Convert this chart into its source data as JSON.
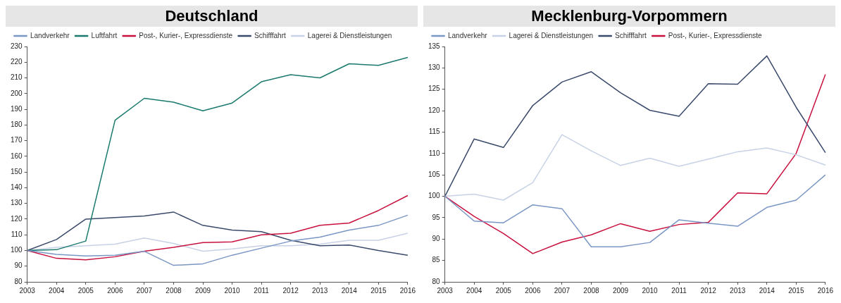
{
  "chart_data": [
    {
      "type": "line",
      "title": "Deutschland",
      "categories": [
        "2003",
        "2004",
        "2005",
        "2006",
        "2007",
        "2008",
        "2009",
        "2010",
        "2011",
        "2012",
        "2013",
        "2014",
        "2015",
        "2016"
      ],
      "series": [
        {
          "name": "Landverkehr",
          "color": "#7a96c4",
          "values": [
            100,
            97.5,
            96.5,
            97,
            99.5,
            90.5,
            91.5,
            97,
            101.5,
            106,
            108.5,
            113,
            116,
            122.5
          ]
        },
        {
          "name": "Luftfahrt",
          "color": "#1a7a6e",
          "values": [
            100,
            100.5,
            106,
            183,
            197,
            194.5,
            189,
            194,
            207.5,
            212,
            210,
            219,
            218,
            223
          ]
        },
        {
          "name": "Post-, Kurier-, Expressdienste",
          "color": "#c8103e",
          "values": [
            100,
            95,
            94,
            96,
            99.5,
            102,
            105,
            105.5,
            110,
            111,
            116,
            117.5,
            125.5,
            135
          ]
        },
        {
          "name": "Schifffahrt",
          "color": "#3a4a6b",
          "values": [
            100,
            107,
            120,
            121,
            122,
            124.5,
            116,
            113,
            112,
            106.5,
            103,
            103.5,
            100,
            97
          ]
        },
        {
          "name": "Lagerei & Dienstleistungen",
          "color": "#c7d2e6",
          "values": [
            100,
            102,
            103,
            104,
            108,
            104.5,
            99.5,
            101,
            103,
            103,
            104,
            106.5,
            106.5,
            111
          ]
        }
      ],
      "ylim": [
        80,
        230
      ],
      "yticks": [
        80,
        90,
        100,
        110,
        120,
        130,
        140,
        150,
        160,
        170,
        180,
        190,
        200,
        210,
        220,
        230
      ],
      "grid": false,
      "legend": "top left",
      "marker": "none",
      "line_style": "solid"
    },
    {
      "type": "line",
      "title": "Mecklenburg-Vorpommern",
      "categories": [
        "2003",
        "2004",
        "2005",
        "2006",
        "2007",
        "2008",
        "2009",
        "2010",
        "2011",
        "2012",
        "2013",
        "2014",
        "2015",
        "2016"
      ],
      "series": [
        {
          "name": "Landverkehr",
          "color": "#7a96c4",
          "values": [
            100,
            94.2,
            93.8,
            98,
            97.1,
            88.2,
            88.2,
            89.2,
            94.5,
            93.7,
            93,
            97.4,
            99.1,
            105
          ]
        },
        {
          "name": "Lagerei & Dienstleistungen",
          "color": "#c7d2e6",
          "values": [
            100,
            100.5,
            99.1,
            103.2,
            114.4,
            110.6,
            107.2,
            108.9,
            107,
            108.7,
            110.4,
            111.3,
            109.7,
            107.3
          ]
        },
        {
          "name": "Schifffahrt",
          "color": "#3a4a6b",
          "values": [
            100,
            113.4,
            111.4,
            121.2,
            126.7,
            129.1,
            124.2,
            120.1,
            118.7,
            126.3,
            126.2,
            132.8,
            120.8,
            110.2
          ]
        },
        {
          "name": "Post-, Kurier-, Expressdienste",
          "color": "#c8103e",
          "values": [
            100,
            95.3,
            91.3,
            86.6,
            89.3,
            91,
            93.6,
            91.8,
            93.4,
            93.9,
            100.8,
            100.6,
            110,
            128.5
          ]
        }
      ],
      "ylim": [
        80,
        135
      ],
      "yticks": [
        80,
        85,
        90,
        95,
        100,
        105,
        110,
        115,
        120,
        125,
        130,
        135
      ],
      "grid": false,
      "legend": "top left",
      "marker": "none",
      "line_style": "solid"
    }
  ]
}
